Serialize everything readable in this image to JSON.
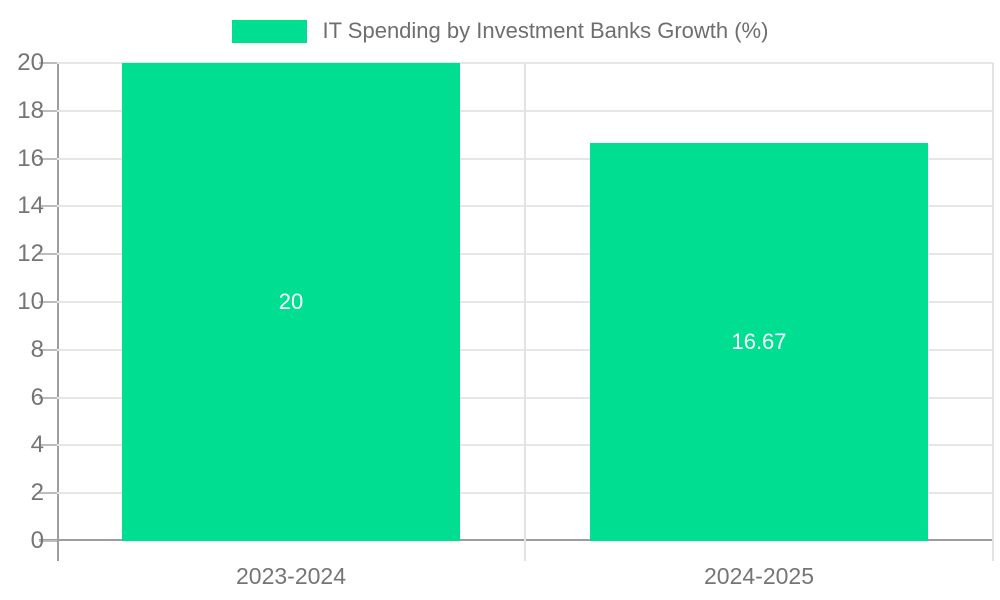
{
  "legend": {
    "label": "IT Spending by Investment Banks Growth (%)"
  },
  "chart_data": {
    "type": "bar",
    "title": "IT Spending by Investment Banks Growth (%)",
    "categories": [
      "2023-2024",
      "2024-2025"
    ],
    "series": [
      {
        "name": "IT Spending by Investment Banks Growth (%)",
        "values": [
          20,
          16.67
        ]
      }
    ],
    "value_labels": [
      "20",
      "16.67"
    ],
    "xlabel": "",
    "ylabel": "",
    "ylim": [
      0,
      20
    ],
    "ytick_step": 2,
    "ytick_labels": [
      "0",
      "2",
      "4",
      "6",
      "8",
      "10",
      "12",
      "14",
      "16",
      "18",
      "20"
    ],
    "grid": true,
    "legend_position": "top-center",
    "colors": {
      "bar": "#00DE92",
      "value_label": "#FFFFFF",
      "axis_line": "#9E9E9E",
      "gridline": "#E6E6E6",
      "separator": "#E3E3E3",
      "tick_text": "#757575",
      "background": "#FFFFFF"
    }
  }
}
